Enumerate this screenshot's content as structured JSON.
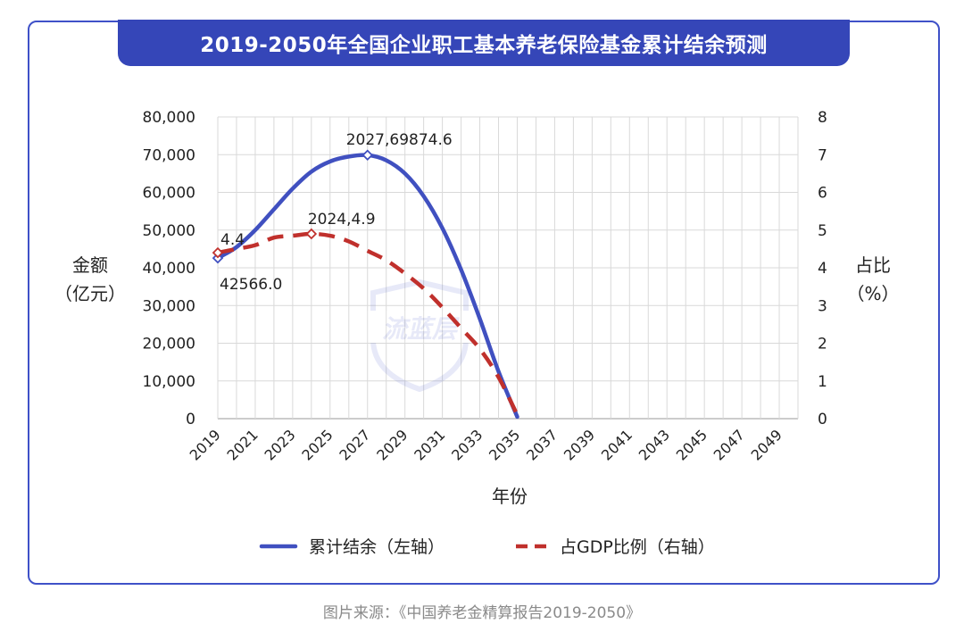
{
  "source": "图片来源：《中国养老金精算报告2019-2050》",
  "colors": {
    "frame": "#3f51c8",
    "title_bg": "#3546b8",
    "balance": "#4050c0",
    "gdp": "#c0302c"
  },
  "chart_data": {
    "type": "line",
    "title": "2019-2050年全国企业职工基本养老保险基金累计结余预测",
    "xlabel": "年份",
    "ylabel_left": [
      "金额",
      "（亿元）"
    ],
    "ylabel_right": [
      "占比",
      "（%）"
    ],
    "x_ticks": [
      "2019",
      "2021",
      "2023",
      "2025",
      "2027",
      "2029",
      "2031",
      "2033",
      "2035",
      "2037",
      "2039",
      "2041",
      "2043",
      "2045",
      "2047",
      "2049"
    ],
    "xlim": [
      2019,
      2050
    ],
    "ylim_left": [
      0,
      80000
    ],
    "ylim_right": [
      0,
      8
    ],
    "y_ticks_left": [
      "0",
      "10,000",
      "20,000",
      "30,000",
      "40,000",
      "50,000",
      "60,000",
      "70,000",
      "80,000"
    ],
    "y_ticks_right": [
      "0",
      "1",
      "2",
      "3",
      "4",
      "5",
      "6",
      "7",
      "8"
    ],
    "grid": true,
    "legend_position": "bottom",
    "series": [
      {
        "name": "累计结余（左轴）",
        "axis": "left",
        "x": [
          2019,
          2020,
          2021,
          2022,
          2023,
          2024,
          2025,
          2026,
          2027,
          2028,
          2029,
          2030,
          2031,
          2032,
          2033,
          2034,
          2035
        ],
        "y": [
          42566.0,
          45500,
          50000,
          55500,
          61000,
          65500,
          68200,
          69500,
          69874.6,
          68500,
          65000,
          59000,
          50500,
          39500,
          26500,
          12500,
          500
        ]
      },
      {
        "name": "占GDP比例（右轴）",
        "axis": "right",
        "x": [
          2019,
          2020,
          2021,
          2022,
          2023,
          2024,
          2025,
          2026,
          2027,
          2028,
          2029,
          2030,
          2031,
          2032,
          2033,
          2034,
          2035
        ],
        "y": [
          4.4,
          4.5,
          4.6,
          4.8,
          4.85,
          4.9,
          4.85,
          4.7,
          4.45,
          4.2,
          3.85,
          3.45,
          2.95,
          2.4,
          1.85,
          1.1,
          0.1
        ]
      }
    ],
    "annotations": [
      {
        "series": 0,
        "x": 2019,
        "y": 42566.0,
        "label": "42566.0"
      },
      {
        "series": 0,
        "x": 2027,
        "y": 69874.6,
        "label": "2027,69874.6"
      },
      {
        "series": 1,
        "x": 2019,
        "y": 4.4,
        "label": "4.4"
      },
      {
        "series": 1,
        "x": 2024,
        "y": 4.9,
        "label": "2024,4.9"
      }
    ]
  }
}
